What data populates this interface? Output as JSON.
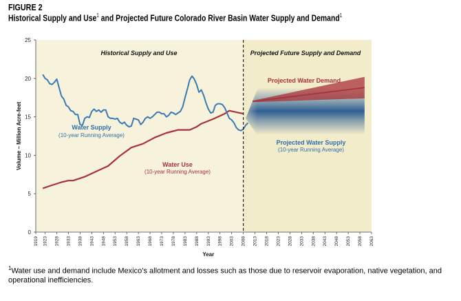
{
  "figure_label": "FIGURE 2",
  "title": {
    "part1": "Historical Supply and Use",
    "sup1": "1",
    "part2": " and Projected Future Colorado River Basin Water Supply and Demand",
    "sup2": "1"
  },
  "footnote": {
    "marker": "1",
    "text": "Water use and demand include Mexico’s allotment and losses such as those due to reservoir evaporation, native vegetation, and operational inefficiencies."
  },
  "colors": {
    "historical_bg": "#f6f2dc",
    "projected_bg": "#f3eccb",
    "supply": "#3a7ab3",
    "use": "#a8323a",
    "divider": "#222222"
  },
  "chart_data": {
    "type": "line",
    "xlabel": "Year",
    "ylabel": "Volume – Million Acre-feet",
    "xlim": [
      1919,
      2063
    ],
    "ylim": [
      0,
      25
    ],
    "x_ticks": [
      1919,
      1923,
      1928,
      1933,
      1938,
      1943,
      1948,
      1953,
      1958,
      1963,
      1968,
      1973,
      1978,
      1983,
      1988,
      1993,
      1998,
      2003,
      2008,
      2013,
      2018,
      2023,
      2028,
      2033,
      2038,
      2043,
      2048,
      2053,
      2058,
      2063
    ],
    "y_ticks": [
      0,
      5,
      10,
      15,
      20,
      25
    ],
    "grid": false,
    "divider_year": 2008,
    "sections": [
      {
        "label": "Historical Supply and Use"
      },
      {
        "label": "Projected Future Supply and Demand"
      }
    ],
    "series": [
      {
        "name": "Water Supply",
        "annotation": [
          "Water Supply",
          "(10-year Running Average)"
        ],
        "x": [
          1922,
          1923,
          1924,
          1925,
          1926,
          1927,
          1928,
          1929,
          1930,
          1931,
          1932,
          1933,
          1934,
          1935,
          1936,
          1937,
          1938,
          1939,
          1940,
          1941,
          1942,
          1943,
          1944,
          1945,
          1946,
          1947,
          1948,
          1949,
          1950,
          1951,
          1952,
          1953,
          1954,
          1955,
          1956,
          1957,
          1958,
          1959,
          1960,
          1961,
          1962,
          1963,
          1964,
          1965,
          1966,
          1967,
          1968,
          1969,
          1970,
          1971,
          1972,
          1973,
          1974,
          1975,
          1976,
          1977,
          1978,
          1979,
          1980,
          1981,
          1982,
          1983,
          1984,
          1985,
          1986,
          1987,
          1988,
          1989,
          1990,
          1991,
          1992,
          1993,
          1994,
          1995,
          1996,
          1997,
          1998,
          1999,
          2000,
          2001,
          2002,
          2003,
          2004,
          2005,
          2006,
          2007,
          2008,
          2009,
          2010
        ],
        "y": [
          20.5,
          20.0,
          19.8,
          19.3,
          19.2,
          19.5,
          19.9,
          18.8,
          17.7,
          17.3,
          16.5,
          16.3,
          15.8,
          15.7,
          15.3,
          15.3,
          14.0,
          13.9,
          14.8,
          15.0,
          14.9,
          15.7,
          16.0,
          15.7,
          15.9,
          15.6,
          15.9,
          15.9,
          15.0,
          14.8,
          14.8,
          14.7,
          14.8,
          14.3,
          14.1,
          14.3,
          13.9,
          13.7,
          13.8,
          14.8,
          14.7,
          14.6,
          14.0,
          14.3,
          14.8,
          15.0,
          14.8,
          15.0,
          15.3,
          15.6,
          15.6,
          15.4,
          15.4,
          15.0,
          15.2,
          15.6,
          15.5,
          15.3,
          15.5,
          15.7,
          16.3,
          17.5,
          18.6,
          19.8,
          20.3,
          19.9,
          19.2,
          18.2,
          18.5,
          17.8,
          16.8,
          16.0,
          15.5,
          15.6,
          16.5,
          16.7,
          16.7,
          16.6,
          16.2,
          15.5,
          14.8,
          14.6,
          14.2,
          13.6,
          13.3,
          13.2,
          13.4,
          13.9,
          14.2
        ]
      },
      {
        "name": "Water Use",
        "annotation": [
          "Water Use",
          "(10-year Running Average)"
        ],
        "x": [
          1922,
          1925,
          1930,
          1933,
          1935,
          1940,
          1945,
          1950,
          1955,
          1960,
          1965,
          1970,
          1975,
          1980,
          1985,
          1988,
          1990,
          1995,
          2000,
          2002,
          2005,
          2008
        ],
        "y": [
          5.7,
          6.0,
          6.5,
          6.7,
          6.7,
          7.2,
          7.9,
          8.6,
          9.9,
          11.0,
          11.5,
          12.3,
          12.9,
          13.3,
          13.3,
          13.7,
          14.1,
          14.7,
          15.4,
          15.8,
          15.6,
          15.4
        ]
      },
      {
        "name": "Projected Water Demand",
        "annotation": [
          "Projected Water Demand"
        ],
        "x": [
          2012,
          2060
        ],
        "y": [
          17.0,
          18.8
        ]
      },
      {
        "name": "Projected Water Supply",
        "annotation": [
          "Projected Water Supply",
          "(10-year Running Average)"
        ],
        "x": [
          2009,
          2012,
          2015,
          2060
        ],
        "y": [
          14.8,
          15.3,
          15.8,
          15.8
        ]
      }
    ]
  }
}
